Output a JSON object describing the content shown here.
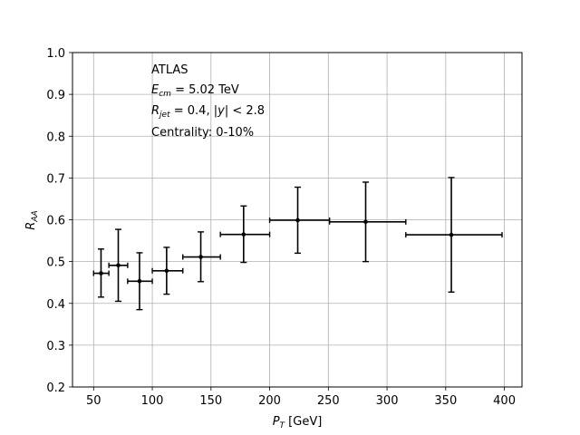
{
  "chart_data": {
    "type": "scatter",
    "title": "",
    "xlabel": "",
    "ylabel": "",
    "xlim": [
      32,
      415
    ],
    "ylim": [
      0.2,
      1.0
    ],
    "grid": true,
    "x_ticks": [
      50,
      100,
      150,
      200,
      250,
      300,
      350,
      400
    ],
    "y_ticks": [
      0.2,
      0.3,
      0.4,
      0.5,
      0.6,
      0.7,
      0.8,
      0.9,
      1.0
    ],
    "x_tick_labels": [
      "50",
      "100",
      "150",
      "200",
      "250",
      "300",
      "350",
      "400"
    ],
    "y_tick_labels": [
      "0.2",
      "0.3",
      "0.4",
      "0.5",
      "0.6",
      "0.7",
      "0.8",
      "0.9",
      "1.0"
    ],
    "axis_label_parts": {
      "x_main": "P",
      "x_sub": "T",
      "x_unit": " [GeV]",
      "y_main": "R",
      "y_sub": "AA"
    },
    "annotations": {
      "experiment": "ATLAS",
      "energy_main": "E",
      "energy_sub": "cm",
      "energy_value": " = 5.02 TeV",
      "radius_main": "R",
      "radius_sub": "jet",
      "radius_value": " = 0.4, |",
      "rapidity_var": "y",
      "rapidity_value": "| < 2.8",
      "centrality": "Centrality: 0-10%"
    },
    "series": [
      {
        "color": "#000000",
        "points": [
          {
            "x": 56.3,
            "xlo": 50,
            "xhi": 63,
            "y": 0.472,
            "ylo": 0.415,
            "yhi": 0.53
          },
          {
            "x": 71,
            "xlo": 63,
            "xhi": 79,
            "y": 0.491,
            "ylo": 0.405,
            "yhi": 0.577
          },
          {
            "x": 89.1,
            "xlo": 79,
            "xhi": 100,
            "y": 0.453,
            "ylo": 0.385,
            "yhi": 0.521
          },
          {
            "x": 112.2,
            "xlo": 100,
            "xhi": 126,
            "y": 0.478,
            "ylo": 0.422,
            "yhi": 0.534
          },
          {
            "x": 141.3,
            "xlo": 126,
            "xhi": 158,
            "y": 0.511,
            "ylo": 0.452,
            "yhi": 0.571
          },
          {
            "x": 177.8,
            "xlo": 158,
            "xhi": 200,
            "y": 0.565,
            "ylo": 0.498,
            "yhi": 0.633
          },
          {
            "x": 223.9,
            "xlo": 200,
            "xhi": 251,
            "y": 0.599,
            "ylo": 0.52,
            "yhi": 0.678
          },
          {
            "x": 281.8,
            "xlo": 251,
            "xhi": 316,
            "y": 0.595,
            "ylo": 0.5,
            "yhi": 0.69
          },
          {
            "x": 354.8,
            "xlo": 316,
            "xhi": 398,
            "y": 0.564,
            "ylo": 0.427,
            "yhi": 0.701
          }
        ]
      }
    ]
  }
}
